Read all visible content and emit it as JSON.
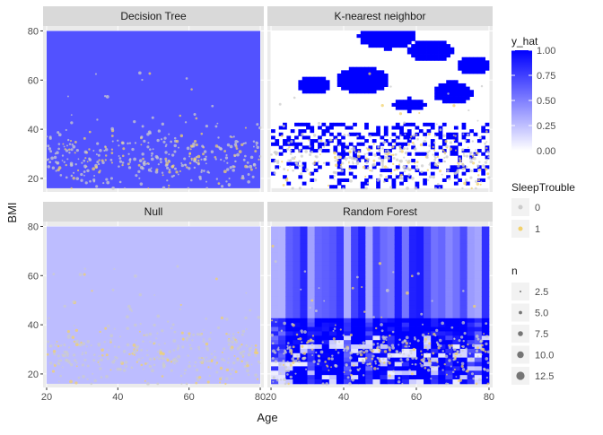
{
  "chart_data": {
    "type": "scatter",
    "layout": "faceted 2x2 grid with predicted-probability raster backgrounds",
    "xlabel": "Age",
    "ylabel": "BMI",
    "xlim": [
      19,
      81
    ],
    "ylim": [
      14.5,
      82
    ],
    "x_ticks": [
      20,
      40,
      60,
      80
    ],
    "y_ticks": [
      20,
      40,
      60,
      80
    ],
    "grid": true,
    "facets": [
      {
        "title": "Decision Tree",
        "fill_pattern": "constant",
        "y_hat": 0.68
      },
      {
        "title": "K-nearest neighbor",
        "fill_pattern": "patchy",
        "y_hat_range": [
          0,
          1
        ]
      },
      {
        "title": "Null",
        "fill_pattern": "constant",
        "y_hat": 0.26
      },
      {
        "title": "Random Forest",
        "fill_pattern": "vertical bands and horizontal streaks",
        "y_hat_range": [
          0.1,
          1
        ]
      }
    ],
    "points": {
      "x_range": [
        20,
        80
      ],
      "bmi_center": 28,
      "bmi_spread": 6,
      "per_panel": 380
    },
    "fill_legend": {
      "title": "y_hat",
      "scale": "continuous",
      "low_color": "#ffffff",
      "high_color": "#0000ff",
      "ticks": [
        "0.00",
        "0.25",
        "0.50",
        "0.75",
        "1.00"
      ]
    },
    "color_legend": {
      "title": "SleepTrouble",
      "entries": [
        {
          "label": "0",
          "color": "#cccccc"
        },
        {
          "label": "1",
          "color": "#f2d16b"
        }
      ]
    },
    "size_legend": {
      "title": "n",
      "entries": [
        "2.5",
        "5.0",
        "7.5",
        "10.0",
        "12.5"
      ]
    }
  }
}
